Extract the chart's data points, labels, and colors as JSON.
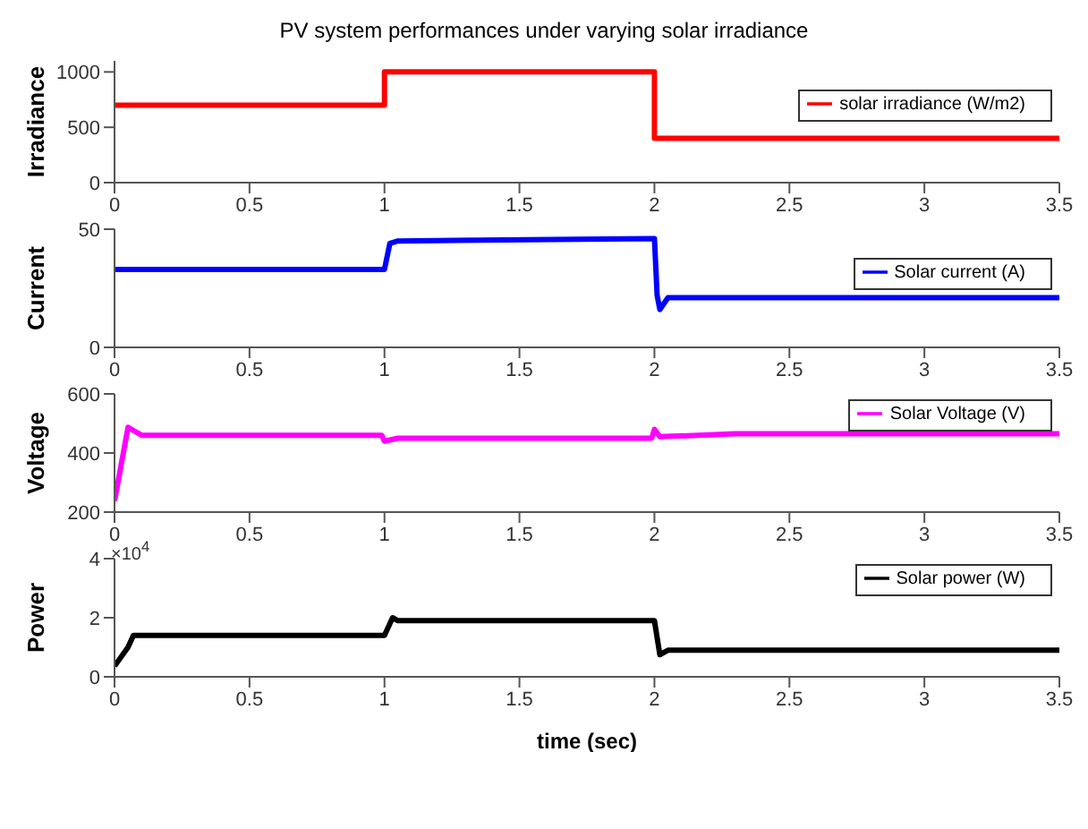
{
  "chart_data": [
    {
      "type": "line",
      "title": "PV system performances under varying solar irradiance",
      "ylabel": "Irradiance",
      "xlim": [
        0,
        3.5
      ],
      "xticks": [
        0,
        0.5,
        1,
        1.5,
        2,
        2.5,
        3,
        3.5
      ],
      "ylim": [
        0,
        1100
      ],
      "yticks": [
        0,
        500,
        1000
      ],
      "grid": false,
      "legend": "right",
      "marker": "none",
      "line_style": "solid",
      "series": [
        {
          "name": "solar irradiance (W/m2)",
          "color": "#ff0000",
          "x": [
            0,
            1,
            1,
            2,
            2,
            3.5
          ],
          "values": [
            700,
            700,
            1000,
            1000,
            400,
            400
          ]
        }
      ]
    },
    {
      "type": "line",
      "ylabel": "Current",
      "xlim": [
        0,
        3.5
      ],
      "xticks": [
        0,
        0.5,
        1,
        1.5,
        2,
        2.5,
        3,
        3.5
      ],
      "ylim": [
        0,
        50
      ],
      "yticks": [
        0,
        50
      ],
      "grid": false,
      "legend": "right",
      "marker": "none",
      "line_style": "solid",
      "series": [
        {
          "name": "Solar current (A)",
          "color": "#0000ff",
          "x": [
            0,
            1,
            1.02,
            1.05,
            2,
            2.01,
            2.02,
            2.05,
            3.5
          ],
          "values": [
            33,
            33,
            44,
            45,
            46,
            22,
            16,
            21,
            21
          ]
        }
      ]
    },
    {
      "type": "line",
      "ylabel": "Voltage",
      "xlim": [
        0,
        3.5
      ],
      "xticks": [
        0,
        0.5,
        1,
        1.5,
        2,
        2.5,
        3,
        3.5
      ],
      "ylim": [
        200,
        600
      ],
      "yticks": [
        200,
        400,
        600
      ],
      "grid": false,
      "legend": "top right",
      "marker": "none",
      "line_style": "solid",
      "series": [
        {
          "name": "Solar Voltage (V)",
          "color": "#ff00ff",
          "x": [
            0,
            0.05,
            0.1,
            0.99,
            1,
            1.05,
            1.99,
            2,
            2.02,
            2.3,
            3.5
          ],
          "values": [
            237,
            487,
            460,
            460,
            440,
            450,
            450,
            480,
            455,
            465,
            465
          ]
        }
      ]
    },
    {
      "type": "line",
      "ylabel": "Power",
      "xlabel": "time (sec)",
      "annotations": [
        "×10$^{4}$"
      ],
      "xlim": [
        0,
        3.5
      ],
      "xticks": [
        0,
        0.5,
        1,
        1.5,
        2,
        2.5,
        3,
        3.5
      ],
      "ylim": [
        0,
        4
      ],
      "yticks": [
        0,
        2,
        4
      ],
      "grid": false,
      "legend": "top right",
      "marker": "none",
      "line_style": "solid",
      "series": [
        {
          "name": "Solar power (W)",
          "color": "#000000",
          "x": [
            0,
            0.05,
            0.07,
            1,
            1.03,
            1.05,
            2,
            2.02,
            2.05,
            3.5
          ],
          "values": [
            0.36,
            1.0,
            1.4,
            1.4,
            2.0,
            1.9,
            1.9,
            0.75,
            0.9,
            0.9
          ]
        }
      ]
    }
  ]
}
